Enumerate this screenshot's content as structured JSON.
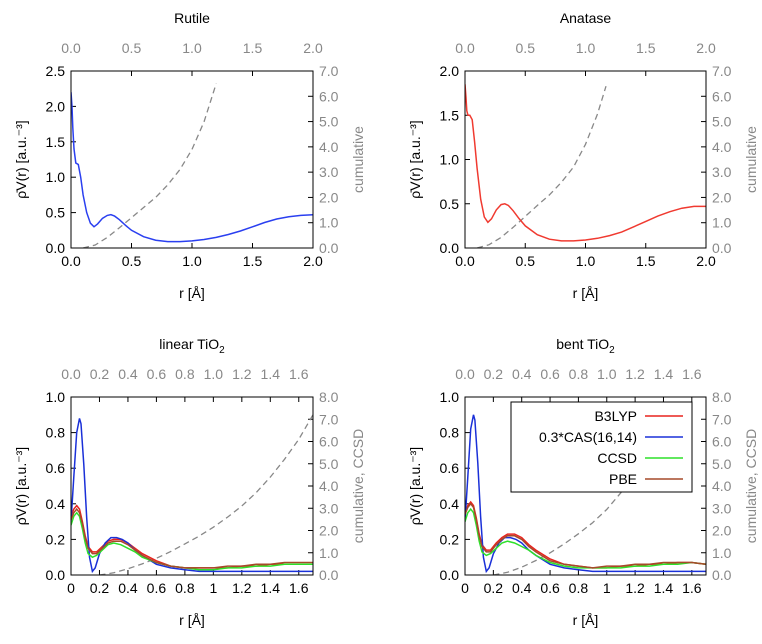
{
  "colors": {
    "b3lyp": "#e8231e",
    "cas": "#1a30d8",
    "ccsd": "#2ee02a",
    "pbe": "#a54a2a",
    "cumulative": "#888888",
    "axis": "#000000",
    "right_axis_text": "#888888"
  },
  "legend": {
    "items": [
      "B3LYP",
      "0.3*CAS(16,14)",
      "CCSD",
      "PBE"
    ]
  },
  "chart_data": [
    {
      "type": "line",
      "title": "Rutile",
      "xlabel": "r [Å]",
      "ylabel": "ρ̄V(r) [a.u.⁻³]",
      "y2label": "cumulative",
      "xlim": [
        0,
        2.0
      ],
      "ylim": [
        0,
        2.5
      ],
      "y2lim": [
        0,
        7.0
      ],
      "xticks": [
        "0.0",
        "0.5",
        "1.0",
        "1.5",
        "2.0"
      ],
      "x2ticks": [
        "0.0",
        "0.5",
        "1.0",
        "1.5",
        "2.0"
      ],
      "yticks": [
        "0.0",
        "0.5",
        "1.0",
        "1.5",
        "2.0",
        "2.5"
      ],
      "y2ticks": [
        "0.0",
        "1.0",
        "2.0",
        "3.0",
        "4.0",
        "5.0",
        "6.0",
        "7.0"
      ],
      "series": [
        {
          "key": "b3lyp_rutile",
          "color": "#2a3ff0",
          "x": [
            0.0,
            0.008,
            0.015,
            0.025,
            0.04,
            0.06,
            0.08,
            0.1,
            0.13,
            0.16,
            0.19,
            0.22,
            0.26,
            0.3,
            0.33,
            0.36,
            0.4,
            0.45,
            0.5,
            0.6,
            0.7,
            0.8,
            0.9,
            1.0,
            1.1,
            1.2,
            1.3,
            1.4,
            1.5,
            1.6,
            1.7,
            1.8,
            1.9,
            2.0
          ],
          "y": [
            2.2,
            2.0,
            1.7,
            1.4,
            1.2,
            1.18,
            1.0,
            0.75,
            0.5,
            0.35,
            0.3,
            0.34,
            0.42,
            0.46,
            0.47,
            0.45,
            0.4,
            0.32,
            0.25,
            0.16,
            0.11,
            0.09,
            0.09,
            0.1,
            0.12,
            0.15,
            0.19,
            0.24,
            0.3,
            0.36,
            0.41,
            0.44,
            0.46,
            0.47
          ]
        }
      ],
      "cumulative": {
        "x": [
          0.1,
          0.2,
          0.3,
          0.4,
          0.5,
          0.6,
          0.7,
          0.8,
          0.9,
          1.0,
          1.1,
          1.2
        ],
        "y": [
          0.0,
          0.12,
          0.42,
          0.8,
          1.2,
          1.6,
          2.0,
          2.5,
          3.1,
          3.9,
          5.0,
          6.5
        ]
      }
    },
    {
      "type": "line",
      "title": "Anatase",
      "xlabel": "r [Å]",
      "ylabel": "ρ̄V(r) [a.u.⁻³]",
      "y2label": "cumulative",
      "xlim": [
        0,
        2.0
      ],
      "ylim": [
        0,
        2.0
      ],
      "y2lim": [
        0,
        7.0
      ],
      "xticks": [
        "0.0",
        "0.5",
        "1.0",
        "1.5",
        "2.0"
      ],
      "x2ticks": [
        "0.0",
        "0.5",
        "1.0",
        "1.5",
        "2.0"
      ],
      "yticks": [
        "0.0",
        "0.5",
        "1.0",
        "1.5",
        "2.0"
      ],
      "y2ticks": [
        "0.0",
        "1.0",
        "2.0",
        "3.0",
        "4.0",
        "5.0",
        "6.0",
        "7.0"
      ],
      "series": [
        {
          "key": "b3lyp_anatase",
          "color": "#f03a30",
          "x": [
            0.0,
            0.008,
            0.015,
            0.025,
            0.04,
            0.06,
            0.08,
            0.1,
            0.13,
            0.16,
            0.19,
            0.22,
            0.26,
            0.3,
            0.33,
            0.36,
            0.4,
            0.45,
            0.5,
            0.6,
            0.7,
            0.8,
            0.9,
            1.0,
            1.1,
            1.2,
            1.3,
            1.4,
            1.5,
            1.6,
            1.7,
            1.8,
            1.9,
            2.0
          ],
          "y": [
            1.85,
            1.7,
            1.55,
            1.5,
            1.5,
            1.45,
            1.2,
            0.9,
            0.55,
            0.35,
            0.29,
            0.33,
            0.43,
            0.49,
            0.5,
            0.48,
            0.42,
            0.33,
            0.25,
            0.15,
            0.1,
            0.08,
            0.08,
            0.09,
            0.11,
            0.14,
            0.18,
            0.24,
            0.3,
            0.36,
            0.41,
            0.45,
            0.47,
            0.47
          ]
        }
      ],
      "cumulative": {
        "x": [
          0.1,
          0.2,
          0.3,
          0.4,
          0.5,
          0.6,
          0.7,
          0.8,
          0.9,
          1.0,
          1.1,
          1.17
        ],
        "y": [
          0.0,
          0.13,
          0.42,
          0.82,
          1.25,
          1.68,
          2.1,
          2.6,
          3.2,
          4.1,
          5.3,
          6.4
        ]
      }
    },
    {
      "type": "line",
      "title": "linear TiO",
      "title_sub": "2",
      "xlabel": "r [Å]",
      "ylabel": "ρ̄V(r) [a.u.⁻³]",
      "y2label": "cumulative, CCSD",
      "xlim": [
        0,
        1.7
      ],
      "ylim": [
        0,
        1.0
      ],
      "y2lim": [
        0,
        8.0
      ],
      "xticks": [
        "0",
        "0.2",
        "0.4",
        "0.6",
        "0.8",
        "1",
        "1.2",
        "1.4",
        "1.6"
      ],
      "x2ticks": [
        "0.0",
        "0.2",
        "0.4",
        "0.6",
        "0.8",
        "1.0",
        "1.2",
        "1.4",
        "1.6"
      ],
      "yticks": [
        "0.0",
        "0.2",
        "0.4",
        "0.6",
        "0.8",
        "1.0"
      ],
      "y2ticks": [
        "0.0",
        "1.0",
        "2.0",
        "3.0",
        "4.0",
        "5.0",
        "6.0",
        "7.0",
        "8.0"
      ],
      "series": [
        {
          "key": "B3LYP",
          "x": [
            0.0,
            0.02,
            0.04,
            0.06,
            0.08,
            0.1,
            0.12,
            0.15,
            0.18,
            0.22,
            0.26,
            0.3,
            0.35,
            0.4,
            0.45,
            0.5,
            0.6,
            0.7,
            0.8,
            0.9,
            1.0,
            1.1,
            1.2,
            1.3,
            1.4,
            1.5,
            1.6,
            1.7
          ],
          "y": [
            0.33,
            0.37,
            0.39,
            0.37,
            0.3,
            0.22,
            0.16,
            0.13,
            0.13,
            0.16,
            0.19,
            0.2,
            0.2,
            0.18,
            0.15,
            0.12,
            0.08,
            0.05,
            0.04,
            0.04,
            0.04,
            0.04,
            0.05,
            0.05,
            0.06,
            0.06,
            0.06,
            0.06
          ]
        },
        {
          "key": "0.3*CAS(16,14)",
          "x": [
            0.0,
            0.02,
            0.04,
            0.06,
            0.07,
            0.09,
            0.11,
            0.13,
            0.15,
            0.17,
            0.2,
            0.24,
            0.28,
            0.32,
            0.36,
            0.4,
            0.45,
            0.5,
            0.6,
            0.7,
            0.8,
            0.9,
            1.0,
            1.1,
            1.2,
            1.3,
            1.4,
            1.5,
            1.6,
            1.7
          ],
          "y": [
            0.3,
            0.55,
            0.8,
            0.88,
            0.85,
            0.62,
            0.32,
            0.1,
            0.02,
            0.04,
            0.12,
            0.18,
            0.21,
            0.21,
            0.2,
            0.18,
            0.14,
            0.11,
            0.06,
            0.04,
            0.03,
            0.02,
            0.02,
            0.02,
            0.02,
            0.02,
            0.02,
            0.02,
            0.02,
            0.02
          ]
        },
        {
          "key": "CCSD",
          "x": [
            0.0,
            0.02,
            0.04,
            0.06,
            0.08,
            0.1,
            0.12,
            0.15,
            0.18,
            0.22,
            0.26,
            0.3,
            0.35,
            0.4,
            0.45,
            0.5,
            0.6,
            0.7,
            0.8,
            0.9,
            1.0,
            1.1,
            1.2,
            1.3,
            1.4,
            1.5,
            1.6,
            1.7
          ],
          "y": [
            0.28,
            0.33,
            0.35,
            0.33,
            0.26,
            0.18,
            0.12,
            0.1,
            0.11,
            0.14,
            0.17,
            0.18,
            0.17,
            0.15,
            0.13,
            0.1,
            0.07,
            0.05,
            0.04,
            0.03,
            0.03,
            0.04,
            0.04,
            0.05,
            0.05,
            0.06,
            0.06,
            0.06
          ]
        },
        {
          "key": "PBE",
          "x": [
            0.0,
            0.02,
            0.04,
            0.06,
            0.08,
            0.1,
            0.12,
            0.15,
            0.18,
            0.22,
            0.26,
            0.3,
            0.35,
            0.4,
            0.45,
            0.5,
            0.6,
            0.7,
            0.8,
            0.9,
            1.0,
            1.1,
            1.2,
            1.3,
            1.4,
            1.5,
            1.6,
            1.7
          ],
          "y": [
            0.31,
            0.35,
            0.37,
            0.35,
            0.29,
            0.21,
            0.15,
            0.12,
            0.12,
            0.15,
            0.18,
            0.19,
            0.19,
            0.17,
            0.14,
            0.11,
            0.07,
            0.05,
            0.04,
            0.04,
            0.04,
            0.05,
            0.05,
            0.06,
            0.06,
            0.07,
            0.07,
            0.07
          ]
        }
      ],
      "cumulative": {
        "x": [
          0.2,
          0.3,
          0.4,
          0.5,
          0.6,
          0.7,
          0.8,
          0.9,
          1.0,
          1.1,
          1.2,
          1.3,
          1.4,
          1.5,
          1.6,
          1.7
        ],
        "y": [
          0.0,
          0.1,
          0.28,
          0.5,
          0.75,
          1.05,
          1.4,
          1.75,
          2.15,
          2.6,
          3.1,
          3.7,
          4.4,
          5.2,
          6.1,
          7.2
        ]
      }
    },
    {
      "type": "line",
      "title": "bent TiO",
      "title_sub": "2",
      "xlabel": "r [Å]",
      "ylabel": "ρ̄V(r) [a.u.⁻³]",
      "y2label": "cumulative, CCSD",
      "xlim": [
        0,
        1.7
      ],
      "ylim": [
        0,
        1.0
      ],
      "y2lim": [
        0,
        8.0
      ],
      "xticks": [
        "0",
        "0.2",
        "0.4",
        "0.6",
        "0.8",
        "1",
        "1.2",
        "1.4",
        "1.6"
      ],
      "x2ticks": [
        "0.0",
        "0.2",
        "0.4",
        "0.6",
        "0.8",
        "1.0",
        "1.2",
        "1.4",
        "1.6"
      ],
      "yticks": [
        "0.0",
        "0.2",
        "0.4",
        "0.6",
        "0.8",
        "1.0"
      ],
      "y2ticks": [
        "0.0",
        "1.0",
        "2.0",
        "3.0",
        "4.0",
        "5.0",
        "6.0",
        "7.0",
        "8.0"
      ],
      "series": [
        {
          "key": "B3LYP",
          "x": [
            0.0,
            0.02,
            0.04,
            0.06,
            0.08,
            0.1,
            0.12,
            0.15,
            0.18,
            0.22,
            0.26,
            0.3,
            0.35,
            0.4,
            0.45,
            0.5,
            0.6,
            0.7,
            0.8,
            0.9,
            1.0,
            1.1,
            1.2,
            1.3,
            1.4,
            1.5,
            1.6,
            1.7
          ],
          "y": [
            0.35,
            0.39,
            0.41,
            0.39,
            0.32,
            0.23,
            0.17,
            0.14,
            0.14,
            0.18,
            0.21,
            0.23,
            0.23,
            0.21,
            0.17,
            0.14,
            0.09,
            0.06,
            0.05,
            0.04,
            0.04,
            0.05,
            0.05,
            0.06,
            0.06,
            0.07,
            0.07,
            0.06
          ]
        },
        {
          "key": "0.3*CAS(16,14)",
          "x": [
            0.0,
            0.02,
            0.04,
            0.06,
            0.07,
            0.09,
            0.11,
            0.13,
            0.15,
            0.17,
            0.2,
            0.24,
            0.28,
            0.32,
            0.36,
            0.4,
            0.45,
            0.5,
            0.6,
            0.7,
            0.8,
            0.9,
            1.0,
            1.1,
            1.2,
            1.3,
            1.4,
            1.5,
            1.6,
            1.7
          ],
          "y": [
            0.3,
            0.55,
            0.82,
            0.9,
            0.87,
            0.63,
            0.33,
            0.1,
            0.02,
            0.04,
            0.12,
            0.18,
            0.21,
            0.21,
            0.2,
            0.18,
            0.14,
            0.11,
            0.06,
            0.04,
            0.03,
            0.02,
            0.02,
            0.02,
            0.02,
            0.02,
            0.02,
            0.02,
            0.02,
            0.02
          ]
        },
        {
          "key": "CCSD",
          "x": [
            0.0,
            0.02,
            0.04,
            0.06,
            0.08,
            0.1,
            0.12,
            0.15,
            0.18,
            0.22,
            0.26,
            0.3,
            0.35,
            0.4,
            0.45,
            0.5,
            0.6,
            0.7,
            0.8,
            0.9,
            1.0,
            1.1,
            1.2,
            1.3,
            1.4,
            1.5,
            1.6,
            1.7
          ],
          "y": [
            0.3,
            0.35,
            0.37,
            0.35,
            0.28,
            0.19,
            0.13,
            0.11,
            0.12,
            0.15,
            0.18,
            0.19,
            0.18,
            0.16,
            0.14,
            0.11,
            0.07,
            0.05,
            0.04,
            0.04,
            0.04,
            0.04,
            0.05,
            0.05,
            0.06,
            0.06,
            0.07,
            0.06
          ]
        },
        {
          "key": "PBE",
          "x": [
            0.0,
            0.02,
            0.04,
            0.06,
            0.08,
            0.1,
            0.12,
            0.15,
            0.18,
            0.22,
            0.26,
            0.3,
            0.35,
            0.4,
            0.45,
            0.5,
            0.6,
            0.7,
            0.8,
            0.9,
            1.0,
            1.1,
            1.2,
            1.3,
            1.4,
            1.5,
            1.6,
            1.7
          ],
          "y": [
            0.34,
            0.38,
            0.4,
            0.38,
            0.31,
            0.22,
            0.16,
            0.13,
            0.13,
            0.17,
            0.2,
            0.22,
            0.22,
            0.2,
            0.16,
            0.13,
            0.08,
            0.06,
            0.05,
            0.04,
            0.05,
            0.05,
            0.06,
            0.06,
            0.07,
            0.07,
            0.07,
            0.06
          ]
        }
      ],
      "cumulative": {
        "x": [
          0.2,
          0.3,
          0.4,
          0.5,
          0.6,
          0.7,
          0.8,
          0.9,
          1.0,
          1.1,
          1.2,
          1.3,
          1.35
        ],
        "y": [
          0.0,
          0.12,
          0.35,
          0.65,
          1.0,
          1.4,
          1.85,
          2.35,
          2.95,
          3.7,
          4.6,
          5.8,
          6.6
        ]
      }
    }
  ]
}
